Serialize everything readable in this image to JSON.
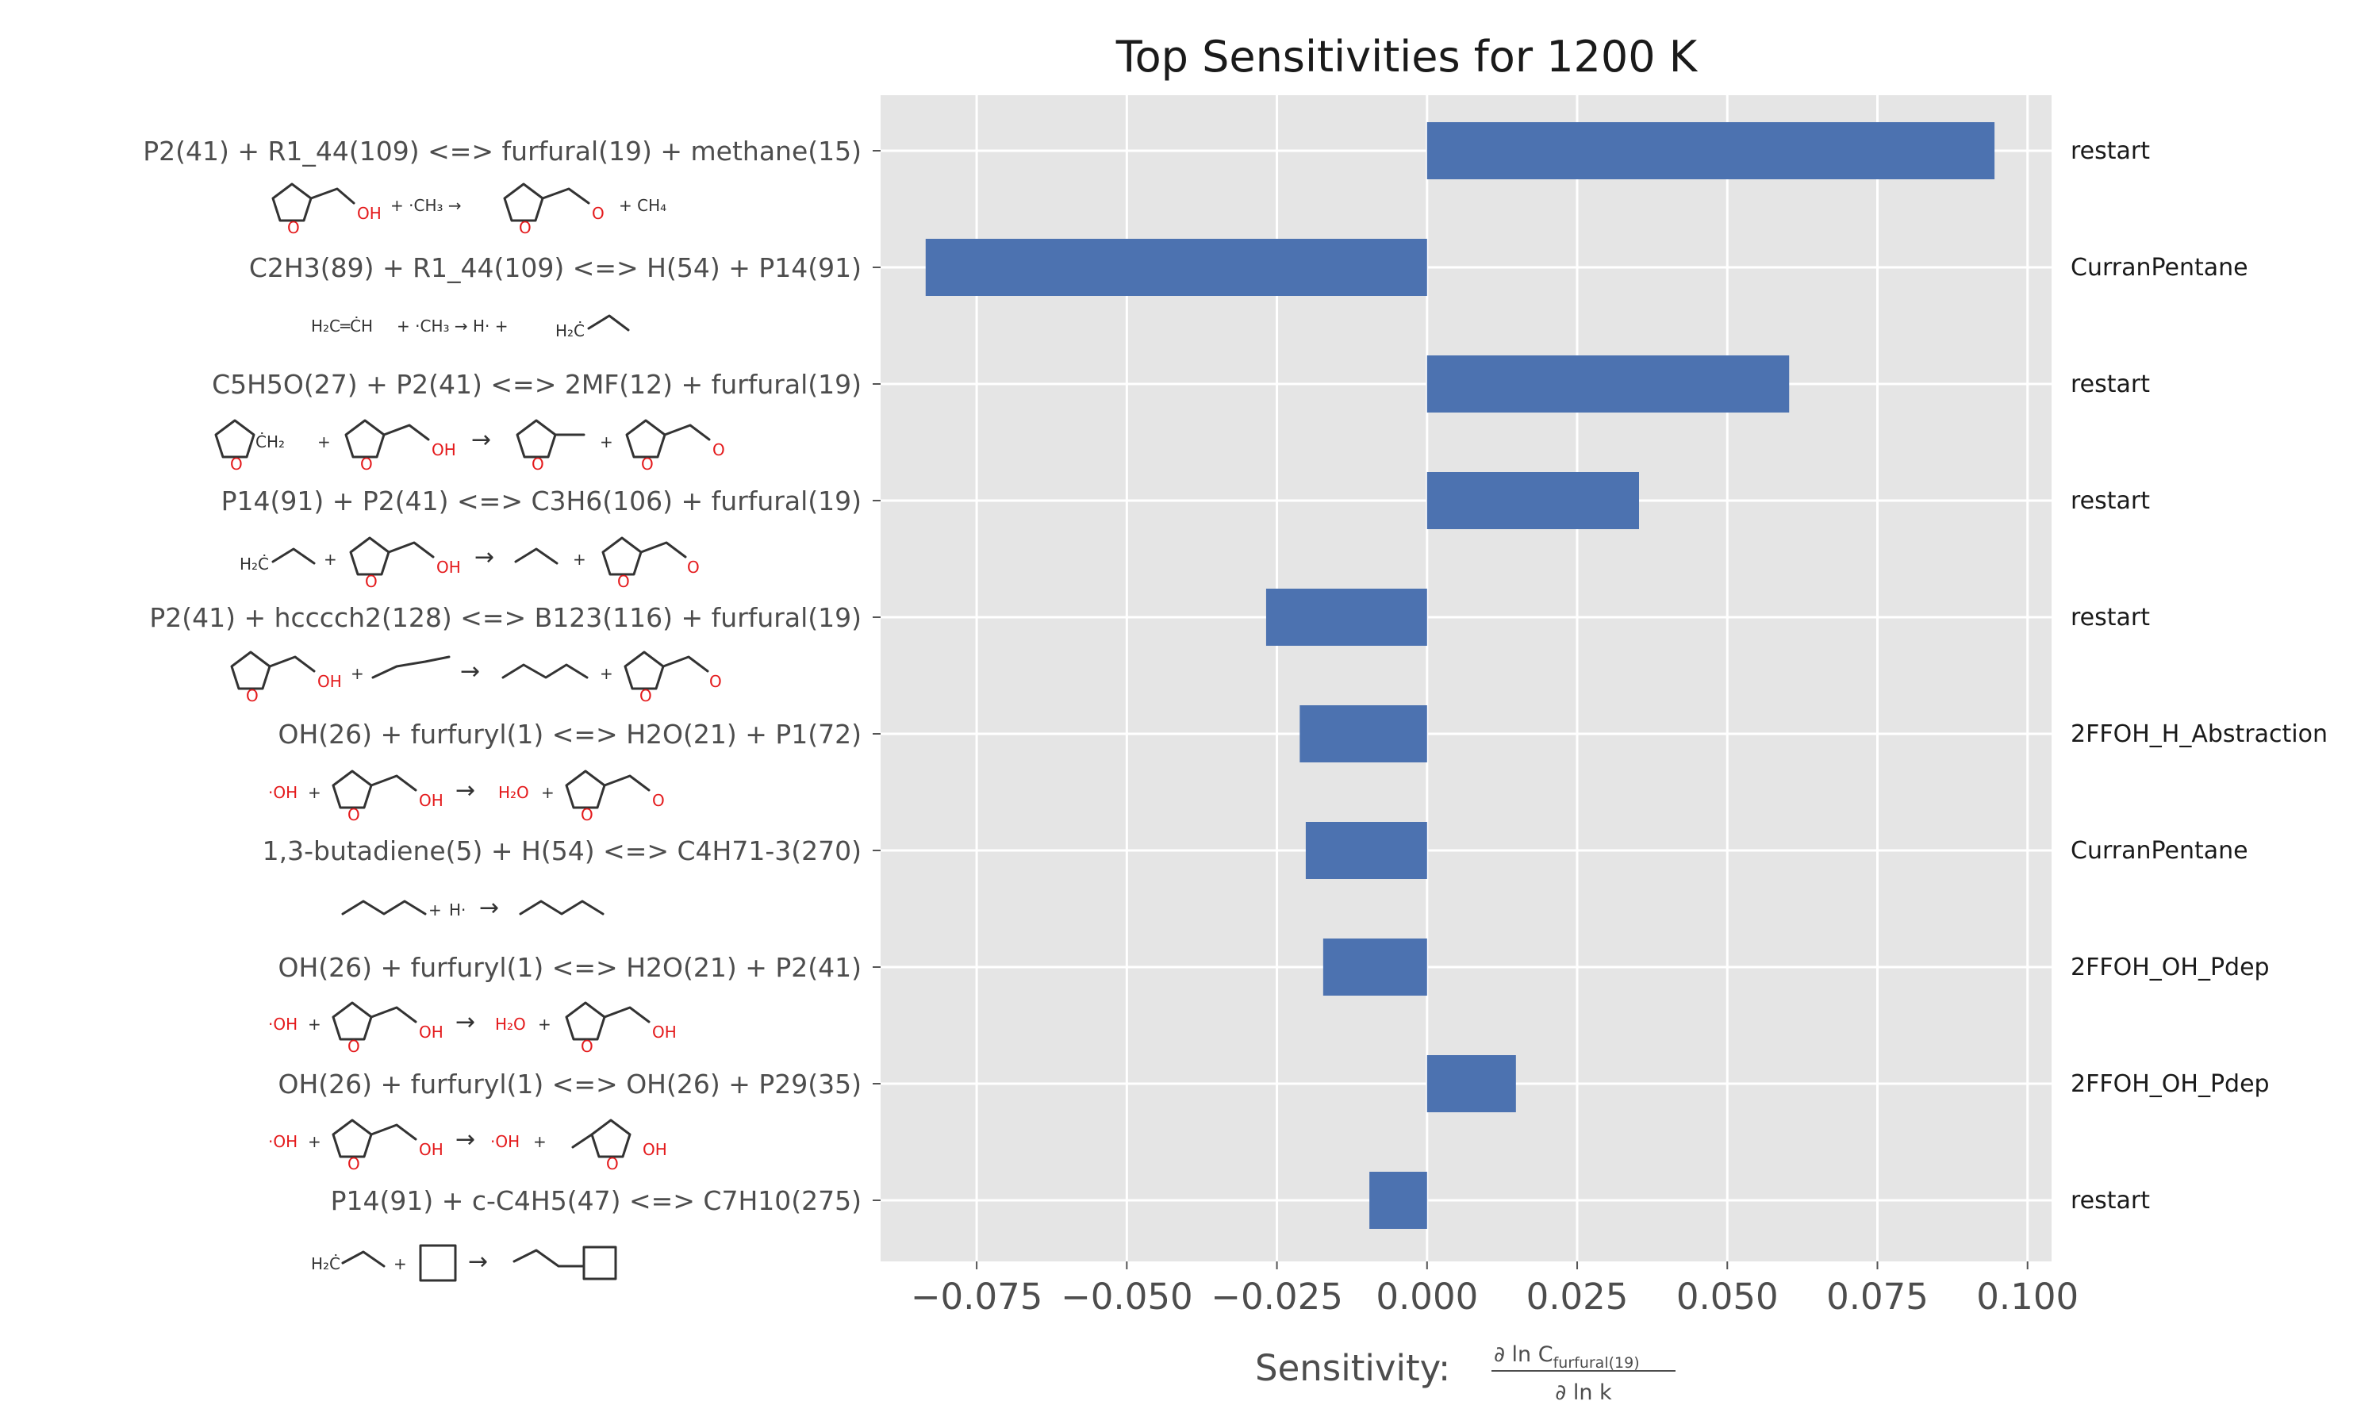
{
  "colors": {
    "bar": "#4c72b0",
    "plot_bg": "#e5e5e5",
    "grid": "#ffffff",
    "tick_text": "#4d4d4d",
    "heteroatom": "#e41a1c"
  },
  "chart_data": {
    "type": "bar",
    "orientation": "horizontal",
    "title": "Top Sensitivities for 1200 K",
    "xlabel_prefix": "Sensitivity:",
    "xlabel_numerator_main": "∂ ln C",
    "xlabel_numerator_sub": "furfural(19)",
    "xlabel_denominator": "∂ ln k",
    "xlim": [
      -0.091,
      0.104
    ],
    "xticks": [
      -0.075,
      -0.05,
      -0.025,
      0.0,
      0.025,
      0.05,
      0.075,
      0.1
    ],
    "xtick_labels": [
      "−0.075",
      "−0.050",
      "−0.025",
      "0.000",
      "0.025",
      "0.050",
      "0.075",
      "0.100"
    ],
    "grid": true,
    "categories": [
      "P2(41) + R1_44(109) <=> furfural(19) + methane(15)",
      "C2H3(89) + R1_44(109) <=> H(54) + P14(91)",
      "C5H5O(27) + P2(41) <=> 2MF(12) + furfural(19)",
      "P14(91) + P2(41) <=> C3H6(106) + furfural(19)",
      "P2(41) + hcccch2(128) <=> B123(116) + furfural(19)",
      "OH(26) + furfuryl(1) <=> H2O(21) + P1(72)",
      "1,3-butadiene(5) + H(54) <=> C4H71-3(270)",
      "OH(26) + furfuryl(1) <=> H2O(21) + P2(41)",
      "OH(26) + furfuryl(1) <=> OH(26) + P29(35)",
      "P14(91) + c-C4H5(47) <=> C7H10(275)"
    ],
    "values": [
      0.0945,
      -0.0835,
      0.0603,
      0.0353,
      -0.0268,
      -0.0212,
      -0.0202,
      -0.0173,
      0.0148,
      -0.0096
    ],
    "right_labels": [
      "restart",
      "CurranPentane",
      "restart",
      "restart",
      "restart",
      "2FFOH_H_Abstraction",
      "CurranPentane",
      "2FFOH_OH_Pdep",
      "2FFOH_OH_Pdep",
      "restart"
    ]
  },
  "structures": {
    "r0": {
      "o": "O",
      "oh": "OH",
      "ch3": "+ ·CH₃ →",
      "ch4": "+ CH₄",
      "plus": "+"
    },
    "r1": {
      "h2c": "H₂C═ĊH",
      "rest": "+ ·CH₃ → H· + ",
      "h2c2": "H₂Ċ"
    },
    "r2": {
      "o": "O",
      "ch2": "ĊH₂",
      "oh": "OH",
      "plus": "+",
      "arrow": "→"
    },
    "r3": {
      "h2c": "H₂Ċ",
      "o": "O",
      "oh": "OH",
      "plus": "+",
      "arrow": "→"
    },
    "r4": {
      "o": "O",
      "oh": "OH",
      "plus": "+",
      "arrow": "→"
    },
    "r5": {
      "ohr": "·OH",
      "o": "O",
      "oh": "OH",
      "h2o": "H₂O",
      "plus": "+",
      "arrow": "→"
    },
    "r6": {
      "h": "H·",
      "plus": "+",
      "arrow": "→"
    },
    "r7": {
      "ohr": "·OH",
      "o": "O",
      "oh": "OH",
      "h2o": "H₂O",
      "plus": "+",
      "arrow": "→"
    },
    "r8": {
      "ohr": "·OH",
      "o": "O",
      "oh": "OH",
      "plus": "+",
      "arrow": "→"
    },
    "r9": {
      "h2c": "H₂Ċ",
      "plus": "+",
      "arrow": "→"
    }
  }
}
